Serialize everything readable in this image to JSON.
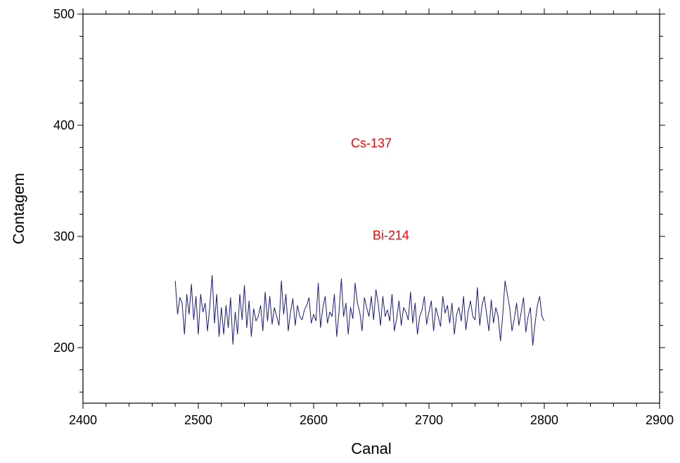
{
  "chart_data": {
    "type": "line",
    "title": "",
    "xlabel": "Canal",
    "ylabel": "Contagem",
    "xlim": [
      2400,
      2900
    ],
    "ylim": [
      150,
      500
    ],
    "x_ticks": [
      2400,
      2500,
      2600,
      2700,
      2800,
      2900
    ],
    "y_ticks": [
      200,
      300,
      400,
      500
    ],
    "x_minor_step": 20,
    "y_minor_step": 20,
    "grid": false,
    "legend": "none",
    "colors": {
      "series": "#1a1a80",
      "annotation": "#ff0000",
      "axis": "#000000"
    },
    "annotations": [
      {
        "text": "Cs-137",
        "x": 2650,
        "y": 380
      },
      {
        "text": "Bi-214",
        "x": 2667,
        "y": 297
      }
    ],
    "series": [
      {
        "x": [
          2480,
          2482,
          2484,
          2486,
          2488,
          2490,
          2492,
          2494,
          2496,
          2498,
          2500,
          2502,
          2504,
          2506,
          2508,
          2510,
          2512,
          2514,
          2516,
          2518,
          2520,
          2522,
          2524,
          2526,
          2528,
          2530,
          2532,
          2534,
          2536,
          2538,
          2540,
          2542,
          2544,
          2546,
          2548,
          2550,
          2552,
          2554,
          2556,
          2558,
          2560,
          2562,
          2564,
          2566,
          2568,
          2570,
          2572,
          2574,
          2576,
          2578,
          2580,
          2582,
          2584,
          2586,
          2588,
          2590,
          2592,
          2594,
          2596,
          2598,
          2600,
          2602,
          2604,
          2606,
          2608,
          2610,
          2612,
          2614,
          2616,
          2618,
          2620,
          2622,
          2624,
          2626,
          2628,
          2630,
          2632,
          2634,
          2636,
          2638,
          2640,
          2642,
          2644,
          2646,
          2648,
          2650,
          2652,
          2654,
          2656,
          2658,
          2660,
          2662,
          2664,
          2666,
          2668,
          2670,
          2672,
          2674,
          2676,
          2678,
          2680,
          2682,
          2684,
          2686,
          2688,
          2690,
          2692,
          2694,
          2696,
          2698,
          2700,
          2702,
          2704,
          2706,
          2708,
          2710,
          2712,
          2714,
          2716,
          2718,
          2720,
          2722,
          2724,
          2726,
          2728,
          2730,
          2732,
          2734,
          2736,
          2738,
          2740,
          2742,
          2744,
          2746,
          2748,
          2750,
          2752,
          2754,
          2756,
          2758,
          2760,
          2762,
          2764,
          2766,
          2768,
          2770,
          2772,
          2774,
          2776,
          2778,
          2780,
          2782,
          2784,
          2786,
          2788,
          2790,
          2792,
          2794,
          2796,
          2798,
          2800
        ],
        "y": [
          260,
          230,
          245,
          240,
          212,
          248,
          230,
          257,
          225,
          246,
          212,
          248,
          232,
          240,
          215,
          238,
          265,
          222,
          248,
          210,
          236,
          212,
          238,
          218,
          245,
          203,
          232,
          212,
          248,
          225,
          256,
          218,
          242,
          210,
          235,
          224,
          228,
          238,
          215,
          250,
          224,
          246,
          221,
          236,
          228,
          220,
          260,
          230,
          248,
          215,
          232,
          244,
          220,
          238,
          228,
          225,
          234,
          238,
          245,
          222,
          230,
          224,
          258,
          218,
          236,
          246,
          222,
          232,
          228,
          248,
          210,
          232,
          262,
          228,
          240,
          212,
          236,
          226,
          258,
          240,
          232,
          215,
          245,
          236,
          228,
          246,
          225,
          252,
          240,
          220,
          246,
          228,
          234,
          224,
          248,
          215,
          226,
          242,
          220,
          236,
          232,
          225,
          250,
          222,
          240,
          212,
          228,
          234,
          246,
          221,
          232,
          242,
          215,
          236,
          228,
          219,
          246,
          231,
          238,
          222,
          240,
          212,
          230,
          236,
          224,
          246,
          216,
          232,
          242,
          228,
          225,
          254,
          220,
          238,
          246,
          230,
          215,
          243,
          222,
          236,
          228,
          206,
          230,
          260,
          248,
          236,
          215,
          226,
          240,
          220,
          232,
          245,
          214,
          228,
          236,
          202,
          222,
          238,
          246,
          228,
          224
        ]
      }
    ]
  }
}
